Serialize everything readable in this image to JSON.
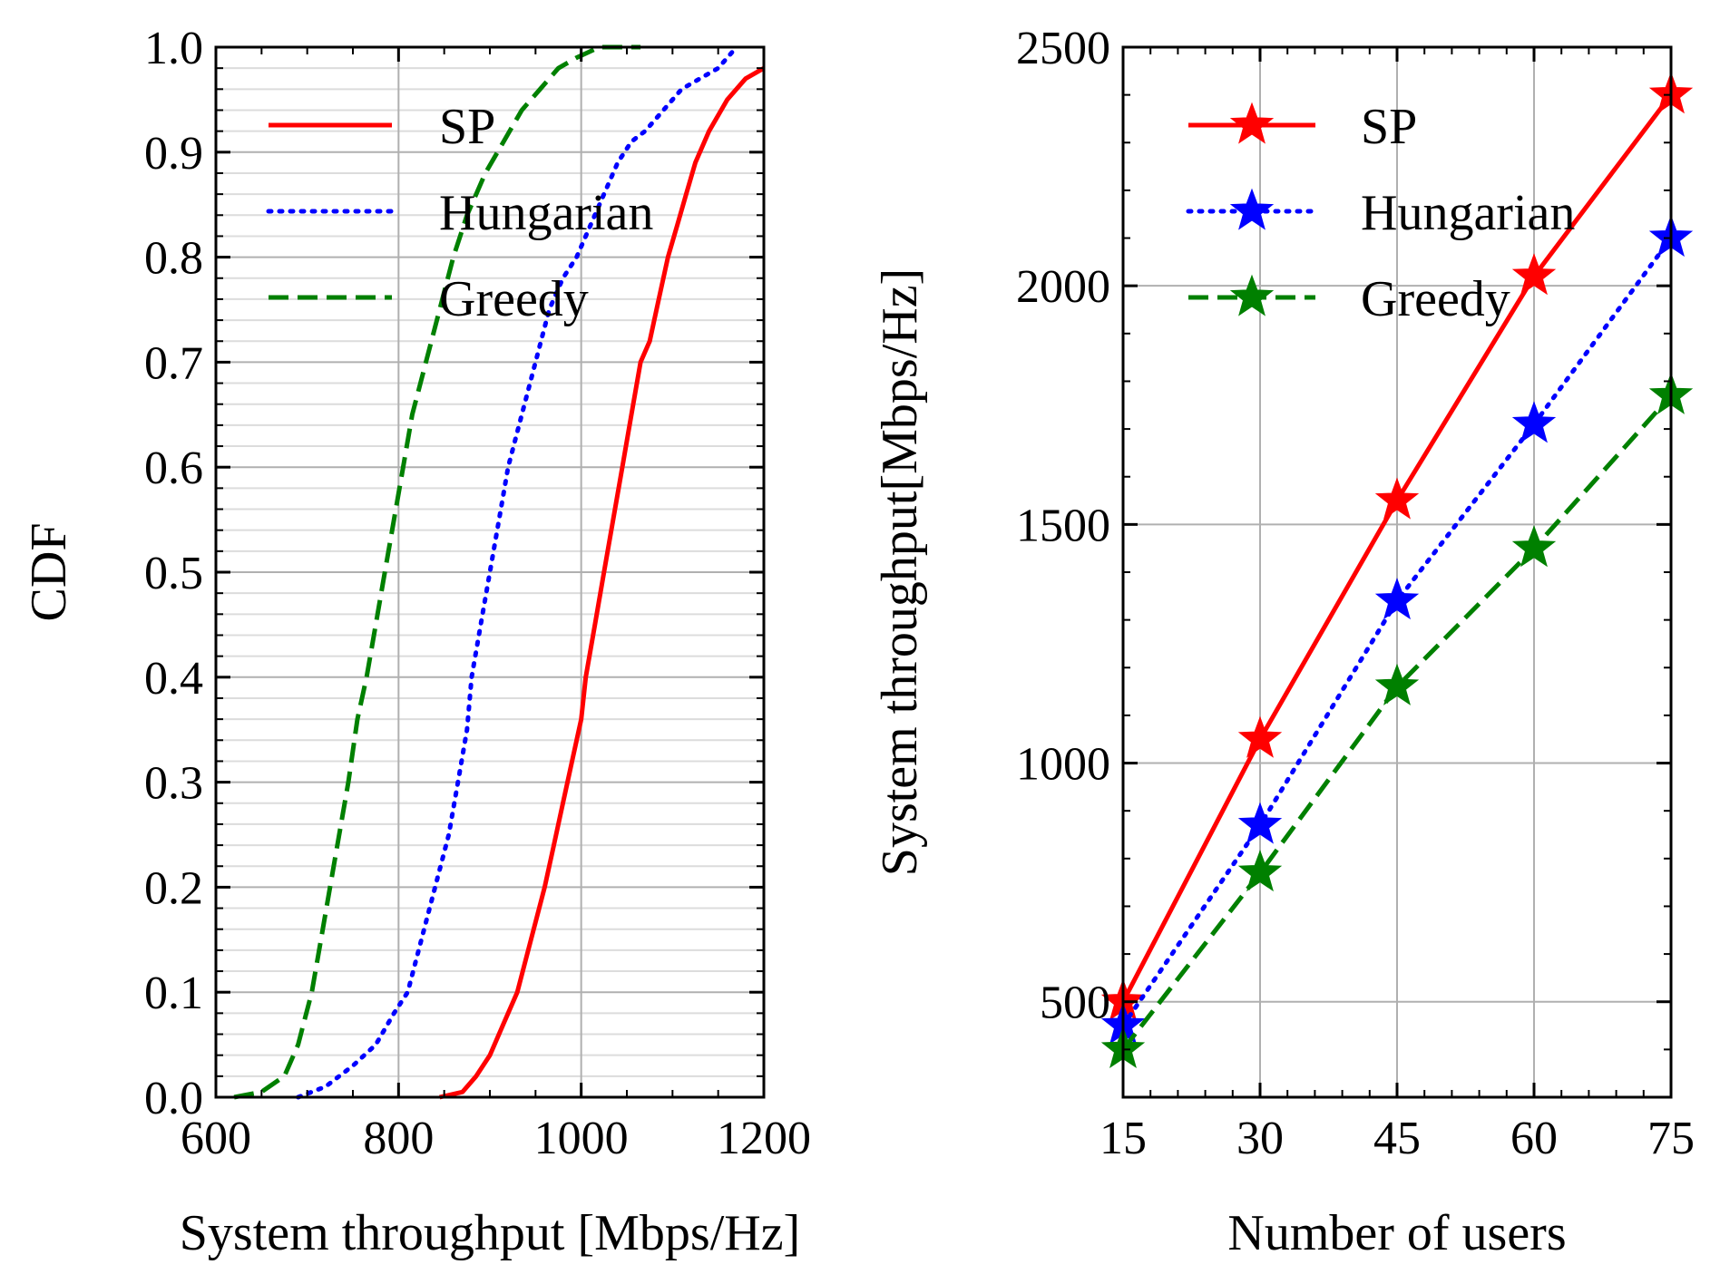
{
  "chart_data": [
    {
      "type": "line",
      "subtype": "cdf",
      "title": "",
      "xlabel": "System throughput [Mbps/Hz]",
      "ylabel": "CDF",
      "xlim": [
        600,
        1200
      ],
      "ylim": [
        0.0,
        1.0
      ],
      "xticks": [
        "600",
        "800",
        "1000",
        "1200"
      ],
      "yticks": [
        "0.0",
        "0.1",
        "0.2",
        "0.3",
        "0.4",
        "0.5",
        "0.6",
        "0.7",
        "0.8",
        "0.9",
        "1.0"
      ],
      "grid": true,
      "legend_position": "top-left",
      "series": [
        {
          "name": "SP",
          "color": "#ff0000",
          "dash": "solid",
          "x": [
            845,
            870,
            885,
            900,
            915,
            930,
            945,
            960,
            970,
            980,
            990,
            1000,
            1005,
            1015,
            1025,
            1035,
            1045,
            1055,
            1065,
            1075,
            1085,
            1095,
            1105,
            1115,
            1125,
            1140,
            1160,
            1180,
            1200
          ],
          "y": [
            0.0,
            0.005,
            0.02,
            0.04,
            0.07,
            0.1,
            0.15,
            0.2,
            0.24,
            0.28,
            0.32,
            0.36,
            0.4,
            0.45,
            0.5,
            0.55,
            0.6,
            0.65,
            0.7,
            0.72,
            0.76,
            0.8,
            0.83,
            0.86,
            0.89,
            0.92,
            0.95,
            0.97,
            0.98
          ]
        },
        {
          "name": "Hungarian",
          "color": "#0000ff",
          "dash": "dotted",
          "x": [
            690,
            720,
            750,
            775,
            795,
            810,
            825,
            840,
            855,
            865,
            875,
            880,
            890,
            900,
            910,
            920,
            935,
            950,
            965,
            980,
            995,
            1010,
            1025,
            1040,
            1055,
            1070,
            1090,
            1110,
            1130,
            1150,
            1170
          ],
          "y": [
            0.0,
            0.01,
            0.03,
            0.05,
            0.08,
            0.1,
            0.15,
            0.2,
            0.25,
            0.3,
            0.35,
            0.4,
            0.45,
            0.5,
            0.55,
            0.6,
            0.65,
            0.7,
            0.75,
            0.78,
            0.8,
            0.83,
            0.86,
            0.89,
            0.91,
            0.92,
            0.94,
            0.96,
            0.97,
            0.98,
            1.0
          ]
        },
        {
          "name": "Greedy",
          "color": "#008000",
          "dash": "dashed",
          "x": [
            620,
            650,
            675,
            690,
            705,
            715,
            725,
            735,
            745,
            755,
            765,
            775,
            785,
            795,
            805,
            815,
            830,
            845,
            860,
            875,
            895,
            915,
            935,
            955,
            975,
            995,
            1020,
            1045,
            1065
          ],
          "y": [
            0.0,
            0.005,
            0.02,
            0.05,
            0.1,
            0.15,
            0.2,
            0.25,
            0.3,
            0.36,
            0.4,
            0.45,
            0.5,
            0.55,
            0.6,
            0.65,
            0.7,
            0.75,
            0.8,
            0.84,
            0.88,
            0.91,
            0.94,
            0.96,
            0.98,
            0.99,
            1.0,
            1.0,
            1.0
          ]
        }
      ]
    },
    {
      "type": "line",
      "title": "",
      "xlabel": "Number of users",
      "ylabel": "System throughput[Mbps/Hz]",
      "xlim": [
        15,
        75
      ],
      "ylim": [
        300,
        2500
      ],
      "xticks": [
        "15",
        "30",
        "45",
        "60",
        "75"
      ],
      "yticks": [
        "500",
        "1000",
        "1500",
        "2000",
        "2500"
      ],
      "grid": true,
      "legend_position": "top-left",
      "x": [
        15,
        30,
        45,
        60,
        75
      ],
      "series": [
        {
          "name": "SP",
          "color": "#ff0000",
          "dash": "solid",
          "marker": "star",
          "values": [
            500,
            1050,
            1550,
            2020,
            2400
          ]
        },
        {
          "name": "Hungarian",
          "color": "#0000ff",
          "dash": "dotted",
          "marker": "star",
          "values": [
            450,
            870,
            1340,
            1710,
            2100
          ]
        },
        {
          "name": "Greedy",
          "color": "#008000",
          "dash": "dashed",
          "marker": "star",
          "values": [
            400,
            770,
            1160,
            1450,
            1770
          ]
        }
      ]
    }
  ]
}
